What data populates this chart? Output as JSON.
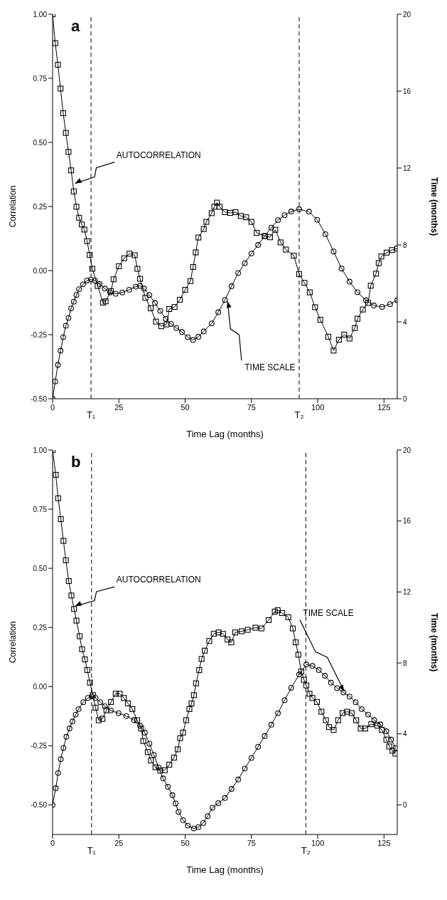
{
  "chart_data": [
    {
      "type": "line",
      "title": "a",
      "xlabel": "Time Lag (months)",
      "ylabel": "Correlation",
      "y2label": "Time (months)",
      "xlim": [
        0,
        130
      ],
      "xticks": [
        0,
        25,
        50,
        75,
        100,
        125
      ],
      "ylim": [
        -0.5,
        1.0
      ],
      "yticks": [
        {
          "value": -0.5,
          "label": "-0.50"
        },
        {
          "value": -0.25,
          "label": "-0.25"
        },
        {
          "value": 0,
          "label": "0.00"
        },
        {
          "value": 0.25,
          "label": "0.25"
        },
        {
          "value": 0.5,
          "label": "0.50"
        },
        {
          "value": 0.75,
          "label": "0.75"
        },
        {
          "value": 1.0,
          "label": "1.00"
        }
      ],
      "y2lim": [
        0,
        20
      ],
      "y2ticks": [
        0,
        4,
        8,
        12,
        16,
        20
      ],
      "ref_lines": [
        {
          "axis": "x",
          "value": 14.5,
          "label": "T₁",
          "line_style": "dashed"
        },
        {
          "axis": "x",
          "value": 93,
          "label": "T₂",
          "line_style": "dashed"
        }
      ],
      "series": [
        {
          "name": "AUTOCORRELATION",
          "color": "#000000",
          "marker": "square",
          "x": [
            0,
            1,
            2,
            3,
            4,
            5,
            6,
            7,
            8,
            9,
            10,
            11,
            12,
            13,
            14,
            15,
            17,
            19,
            20,
            22,
            23,
            25,
            27,
            29,
            31,
            32,
            33,
            35,
            37,
            39,
            41,
            43,
            44,
            46,
            48,
            50,
            52,
            53,
            54,
            55,
            57,
            58,
            60,
            61,
            62,
            63,
            65,
            67,
            69,
            71,
            73,
            75,
            77,
            80,
            82,
            84,
            86,
            88,
            91,
            93,
            95,
            97,
            99,
            101,
            104,
            106,
            108,
            110,
            112,
            114,
            115,
            117,
            119,
            120,
            122,
            123,
            124,
            126,
            128,
            130
          ],
          "values": [
            1,
            0.887,
            0.803,
            0.71,
            0.614,
            0.537,
            0.463,
            0.391,
            0.309,
            0.249,
            0.206,
            0.18,
            0.16,
            0.115,
            0.061,
            0.007,
            -0.06,
            -0.125,
            -0.12,
            -0.08,
            -0.034,
            0.017,
            0.048,
            0.066,
            0.06,
            0.007,
            -0.032,
            -0.106,
            -0.147,
            -0.199,
            -0.217,
            -0.21,
            -0.15,
            -0.142,
            -0.114,
            -0.075,
            -0.041,
            0.014,
            0.071,
            0.129,
            0.162,
            0.19,
            0.224,
            0.249,
            0.265,
            0.249,
            0.228,
            0.225,
            0.228,
            0.213,
            0.208,
            0.19,
            0.147,
            0.135,
            0.13,
            0.159,
            0.11,
            0.082,
            0.058,
            -0.014,
            -0.048,
            -0.085,
            -0.143,
            -0.192,
            -0.258,
            -0.312,
            -0.27,
            -0.25,
            -0.265,
            -0.224,
            -0.188,
            -0.152,
            -0.126,
            -0.059,
            -0.012,
            0.029,
            0.055,
            0.07,
            0.08,
            0.086
          ]
        },
        {
          "name": "TIME SCALE",
          "color": "#000000",
          "marker": "circle",
          "axis": "y2",
          "x": [
            0,
            1,
            2,
            3,
            4,
            5,
            6,
            7,
            8,
            9,
            10,
            11.5,
            13,
            14.5,
            16,
            17.7,
            19.7,
            21.7,
            23.8,
            26.3,
            28.9,
            31.4,
            33,
            34.5,
            36.5,
            38.6,
            40.6,
            42.7,
            44.7,
            46.7,
            48.8,
            51,
            53,
            55,
            57,
            60,
            62.5,
            65,
            67.5,
            70,
            72.5,
            75,
            77.5,
            80,
            82.5,
            85,
            87.5,
            90,
            93,
            96.7,
            99.8,
            102.9,
            106,
            109,
            112,
            115,
            118.2,
            121.2,
            124.3,
            127.3,
            130
          ],
          "values": [
            0,
            0.9,
            1.76,
            2.5,
            3.2,
            3.8,
            4.2,
            4.7,
            5.05,
            5.4,
            5.7,
            5.95,
            6.15,
            6.2,
            6.15,
            5.97,
            5.73,
            5.53,
            5.46,
            5.53,
            5.67,
            5.83,
            5.87,
            5.73,
            5.4,
            4.98,
            4.57,
            4.16,
            3.89,
            3.68,
            3.47,
            3.2,
            3.06,
            3.22,
            3.5,
            3.92,
            4.5,
            5.14,
            5.85,
            6.54,
            7.05,
            7.56,
            8.0,
            8.46,
            8.9,
            9.29,
            9.55,
            9.74,
            9.86,
            9.73,
            9.31,
            8.56,
            7.66,
            6.77,
            6.09,
            5.54,
            5.12,
            4.85,
            4.78,
            4.92,
            5.12
          ]
        }
      ]
    },
    {
      "type": "line",
      "title": "b",
      "xlabel": "Time Lag (months)",
      "ylabel": "Correlation",
      "y2label": "Time (months)",
      "xlim": [
        0,
        130
      ],
      "xticks": [
        0,
        25,
        50,
        75,
        100,
        125
      ],
      "ylim": [
        -0.625,
        1.0
      ],
      "yticks": [
        {
          "value": -0.5,
          "label": "-0.50"
        },
        {
          "value": -0.25,
          "label": "-0.25"
        },
        {
          "value": 0,
          "label": "0.00"
        },
        {
          "value": 0.25,
          "label": "0.25"
        },
        {
          "value": 0.5,
          "label": "0.50"
        },
        {
          "value": 0.75,
          "label": "0.75"
        },
        {
          "value": 1.0,
          "label": "1.00"
        }
      ],
      "y2lim": [
        -1.667,
        20
      ],
      "y2ticks": [
        0,
        4,
        8,
        12,
        16,
        20
      ],
      "ref_lines": [
        {
          "axis": "x",
          "value": 14.7,
          "label": "T₁",
          "line_style": "dashed"
        },
        {
          "axis": "x",
          "value": 95.5,
          "label": "T₂",
          "line_style": "dashed"
        }
      ],
      "series": [
        {
          "name": "AUTOCORRELATION",
          "color": "#000000",
          "marker": "square",
          "x": [
            0,
            1.2,
            2.1,
            3.1,
            4.1,
            5,
            6.1,
            7.1,
            8.1,
            9,
            10.2,
            11.1,
            12.2,
            13.1,
            14.1,
            15.2,
            16.2,
            17.4,
            18.8,
            20.3,
            22,
            23.8,
            25.3,
            26.9,
            28.4,
            30.1,
            31.9,
            33.4,
            34.2,
            35.9,
            37.1,
            38.8,
            40.6,
            42.3,
            44,
            45.8,
            47.2,
            48.1,
            49.2,
            50.4,
            51.6,
            52.4,
            53.3,
            54.1,
            55.3,
            56.2,
            57.4,
            59.1,
            60.8,
            62.6,
            64.3,
            66,
            67.4,
            68.9,
            71.3,
            73.6,
            76.5,
            78.8,
            81.5,
            83.8,
            84.9,
            86.6,
            88.9,
            90.6,
            91.7,
            92.7,
            93.8,
            94.8,
            95.7,
            96.9,
            98,
            99.7,
            101.4,
            103.1,
            104.3,
            106,
            107.7,
            109.4,
            111.1,
            112.8,
            114.5,
            116.2,
            117.9,
            120.2,
            122.5,
            124.2,
            125.9,
            127,
            128.2,
            129.3
          ],
          "values": [
            1,
            0.895,
            0.796,
            0.708,
            0.616,
            0.534,
            0.446,
            0.385,
            0.328,
            0.279,
            0.213,
            0.158,
            0.115,
            0.07,
            0.017,
            -0.036,
            -0.089,
            -0.142,
            -0.136,
            -0.1,
            -0.065,
            -0.03,
            -0.03,
            -0.048,
            -0.071,
            -0.095,
            -0.142,
            -0.177,
            -0.23,
            -0.277,
            -0.312,
            -0.341,
            -0.355,
            -0.353,
            -0.33,
            -0.3,
            -0.265,
            -0.218,
            -0.194,
            -0.142,
            -0.095,
            -0.071,
            -0.036,
            0.014,
            0.07,
            0.117,
            0.152,
            0.193,
            0.223,
            0.229,
            0.223,
            0.199,
            0.187,
            0.229,
            0.234,
            0.24,
            0.249,
            0.246,
            0.281,
            0.317,
            0.323,
            0.311,
            0.293,
            0.246,
            0.187,
            0.135,
            0.064,
            0.029,
            0.005,
            -0.03,
            -0.048,
            -0.065,
            -0.106,
            -0.142,
            -0.171,
            -0.183,
            -0.142,
            -0.112,
            -0.106,
            -0.112,
            -0.142,
            -0.177,
            -0.177,
            -0.159,
            -0.165,
            -0.183,
            -0.224,
            -0.253,
            -0.271,
            -0.283
          ]
        },
        {
          "name": "TIME SCALE",
          "color": "#000000",
          "marker": "circle",
          "axis": "y2",
          "x": [
            0,
            1.2,
            2.1,
            3.1,
            4.1,
            5.2,
            6.4,
            7.5,
            8.7,
            9.8,
            11.6,
            13.3,
            14.8,
            16.2,
            18,
            19.7,
            22,
            24.9,
            27.8,
            30.7,
            33,
            34.8,
            36.5,
            38.2,
            40,
            41.7,
            43.5,
            45.2,
            46.4,
            47.5,
            49.2,
            51,
            53.3,
            55,
            56.8,
            58.5,
            60.3,
            62.5,
            65,
            67.5,
            70,
            72.5,
            75,
            77.5,
            80,
            82.5,
            85,
            87.5,
            90,
            93,
            95.7,
            98,
            100.4,
            102.7,
            105,
            107.3,
            109.7,
            112,
            114.3,
            116.6,
            119,
            121.3,
            123.6,
            125.9,
            127.7,
            129.4
          ],
          "values": [
            0,
            0.94,
            1.8,
            2.58,
            3.21,
            3.84,
            4.31,
            4.7,
            5.09,
            5.4,
            5.79,
            6.03,
            6.11,
            6.03,
            5.79,
            5.56,
            5.32,
            5.17,
            5.01,
            4.78,
            4.46,
            4.07,
            3.45,
            2.82,
            2.11,
            1.49,
            1.02,
            0.55,
            0.08,
            -0.39,
            -0.86,
            -1.17,
            -1.33,
            -1.25,
            -1.02,
            -0.63,
            -0.16,
            0.1,
            0.39,
            0.9,
            1.43,
            2.05,
            2.65,
            3.27,
            3.88,
            4.52,
            5.17,
            5.9,
            6.6,
            7.35,
            7.91,
            7.83,
            7.6,
            7.28,
            6.89,
            6.58,
            6.34,
            6.11,
            5.79,
            5.4,
            5.09,
            4.78,
            4.54,
            4.15,
            3.68,
            3.21
          ]
        }
      ]
    }
  ]
}
